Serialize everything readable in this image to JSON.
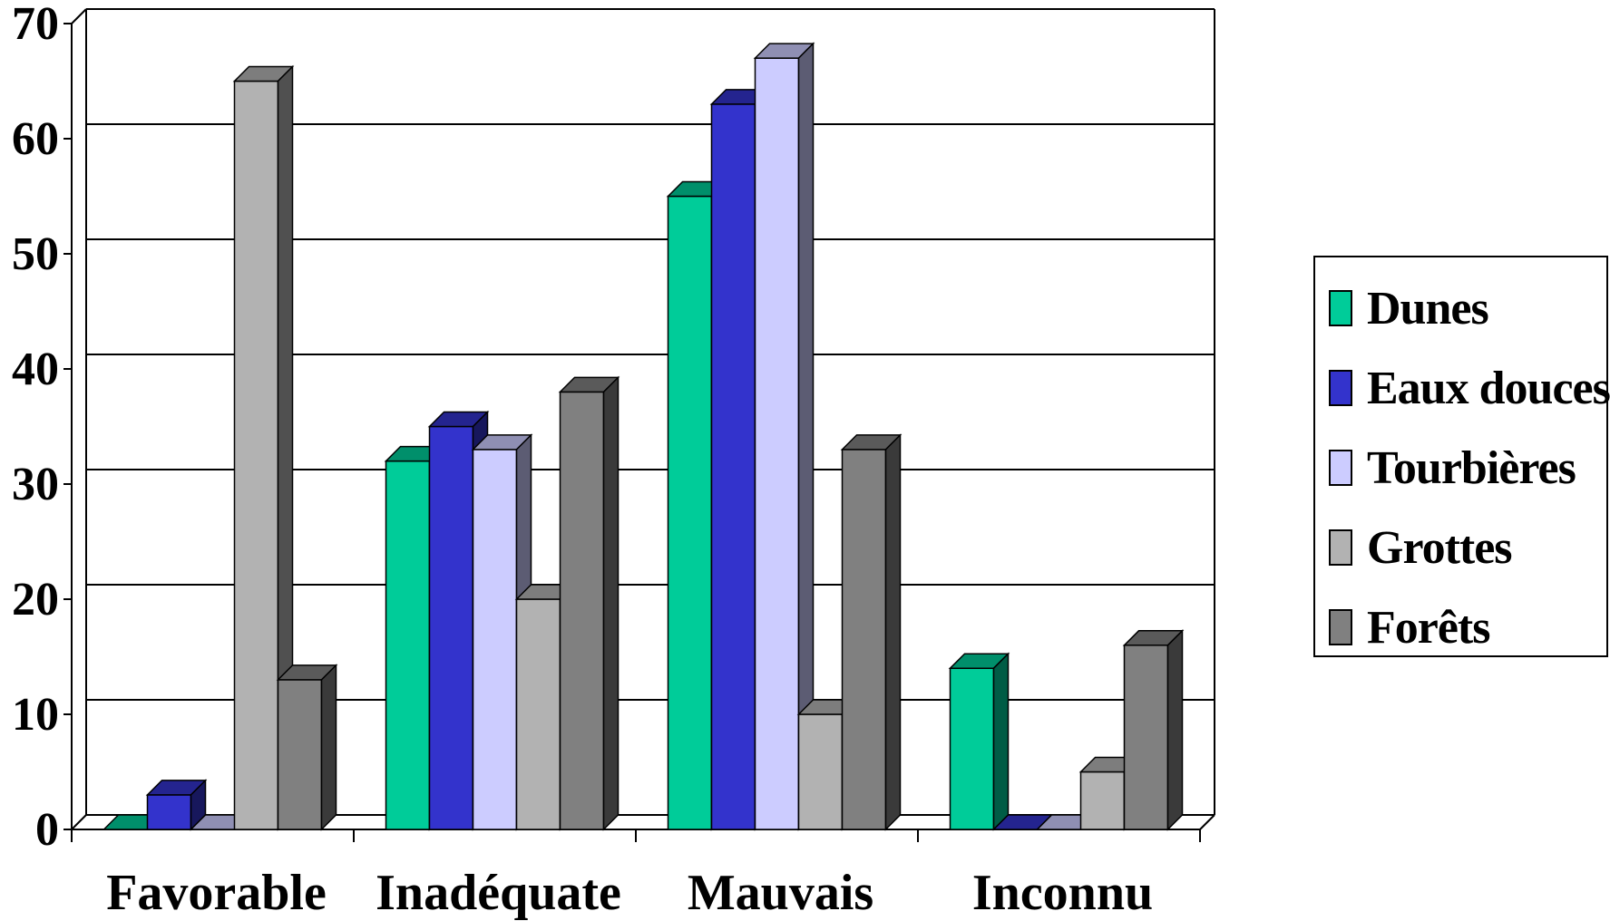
{
  "chart_data": {
    "type": "bar",
    "style": "3d-clustered-column",
    "categories": [
      "Favorable",
      "Inadéquate",
      "Mauvais",
      "Inconnu"
    ],
    "series": [
      {
        "name": "Dunes",
        "values": [
          0,
          32,
          55,
          14
        ],
        "color": "#00CC99"
      },
      {
        "name": "Eaux douces",
        "values": [
          3,
          35,
          63,
          0
        ],
        "color": "#3333CC"
      },
      {
        "name": "Tourbières",
        "values": [
          0,
          33,
          67,
          0
        ],
        "color": "#CCCCFF"
      },
      {
        "name": "Grottes",
        "values": [
          65,
          20,
          10,
          5
        ],
        "color": "#B2B2B2"
      },
      {
        "name": "Forêts",
        "values": [
          13,
          38,
          33,
          16
        ],
        "color": "#808080"
      }
    ],
    "ylim": [
      0,
      70
    ],
    "yticks": [
      0,
      10,
      20,
      30,
      40,
      50,
      60,
      70
    ],
    "grid": true,
    "legend_position": "right",
    "title": "",
    "xlabel": "",
    "ylabel": ""
  }
}
